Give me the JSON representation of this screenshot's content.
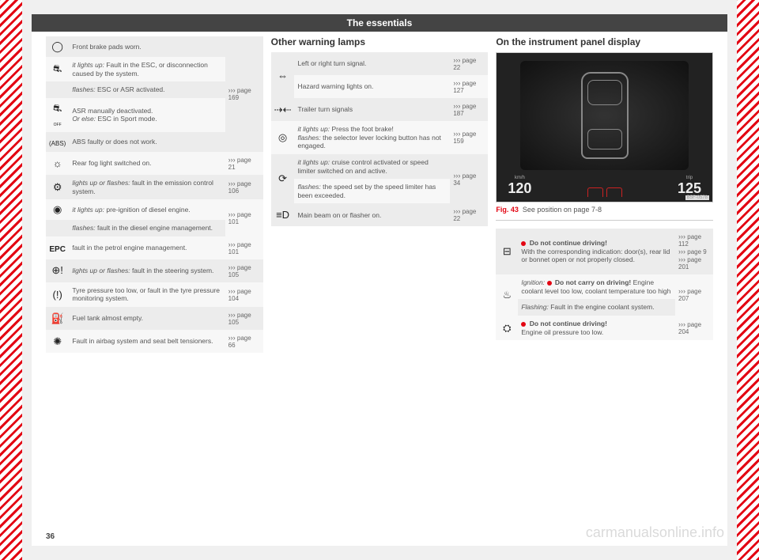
{
  "header": "The essentials",
  "page_number": "36",
  "watermark": "carmanualsonline.info",
  "col1_rows": [
    {
      "icon": "◯",
      "desc": "Front brake pads worn.",
      "ref": "››› page 169",
      "ref_rowspan": 5
    },
    {
      "icon": "⛐",
      "desc": "<em>it lights up:</em> Fault in the ESC, or disconnection caused by the system."
    },
    {
      "icon": "",
      "desc": "<em>flashes:</em> ESC or ASR activated."
    },
    {
      "icon": "⛐<br><span style='font-size:5px'>OFF</span>",
      "desc": "ASR manually deactivated.<br><em>Or else:</em> ESC in Sport mode."
    },
    {
      "icon": "<span style='font-size:8px'>(ABS)</span>",
      "desc": "ABS faulty or does not work."
    },
    {
      "icon": "☼",
      "desc": "Rear fog light switched on.",
      "ref": "››› page 21"
    },
    {
      "icon": "⚙",
      "desc": "<em>lights up or flashes:</em> fault in the emission control system.",
      "ref": "››› page 106"
    },
    {
      "icon": "◉",
      "desc": "<em>it lights up:</em> pre-ignition of diesel engine.",
      "ref": "››› page 101",
      "ref_rowspan": 2
    },
    {
      "icon": "",
      "desc": "<em>flashes:</em> fault in the diesel engine management."
    },
    {
      "icon": "<b style='font-size:10px'>EPC</b>",
      "desc": "fault in the petrol engine management.",
      "ref": "››› page 101"
    },
    {
      "icon": "⊕!",
      "desc": "<em>lights up or flashes:</em> fault in the steering system.",
      "ref": "››› page 105"
    },
    {
      "icon": "(!)",
      "desc": "Tyre pressure too low, or fault in the tyre pressure monitoring system.",
      "ref": "››› page 104"
    },
    {
      "icon": "⛽",
      "desc": "Fuel tank almost empty.",
      "ref": "››› page 105"
    },
    {
      "icon": "✺",
      "desc": "Fault in airbag system and seat belt tensioners.",
      "ref": "››› page 66"
    }
  ],
  "col2_title": "Other warning lamps",
  "col2_rows": [
    {
      "icon": "⇔",
      "desc": "Left or right turn signal.",
      "ref": "››› page 22",
      "icon_rowspan": 2
    },
    {
      "desc": "Hazard warning lights on.",
      "ref": "››› page 127"
    },
    {
      "icon": "⇢⇠",
      "desc": "Trailer turn signals",
      "ref": "››› page 187"
    },
    {
      "icon": "◎",
      "desc": "<em>it lights up:</em> Press the foot brake!<br><em>flashes:</em> the selector lever locking button has not engaged.",
      "ref": "››› page 159"
    },
    {
      "icon": "⟳",
      "desc": "<em>it lights up:</em> cruise control activated or speed limiter switched on and active.",
      "ref": "››› page 34",
      "ref_rowspan": 2,
      "icon_rowspan": 2
    },
    {
      "desc": "<em>flashes:</em> the speed set by the speed limiter has been exceeded."
    },
    {
      "icon": "≡D",
      "desc": "Main beam on or flasher on.",
      "ref": "››› page 22"
    }
  ],
  "col3_title": "On the instrument panel display",
  "fig": {
    "num": "Fig. 43",
    "caption": "See position on page 7-8",
    "code": "B5F-0578",
    "speed": "120",
    "speed_unit": "km/h",
    "trip": "125",
    "trip_unit": "trip"
  },
  "col3_rows": [
    {
      "icon": "⊟",
      "desc": "<span class='red-dot'></span> <b>Do not continue driving!</b><br>With the corresponding indication: door(s), rear lid or bonnet open or not properly closed.",
      "ref": "››› page 112<br>››› page 9<br>››› page 201"
    },
    {
      "icon": "♨",
      "desc": "<em>Ignition:</em> <span class='red-dot'></span> <b>Do not carry on driving!</b> Engine coolant level too low, coolant temperature too high",
      "ref": "››› page 207",
      "ref_rowspan": 2,
      "icon_rowspan": 2
    },
    {
      "desc": "<em>Flashing:</em> Fault in the engine coolant system."
    },
    {
      "icon": "⛭",
      "desc": "<span class='red-dot'></span> <b>Do not continue driving!</b><br>Engine oil pressure too low.",
      "ref": "››› page 204"
    }
  ]
}
